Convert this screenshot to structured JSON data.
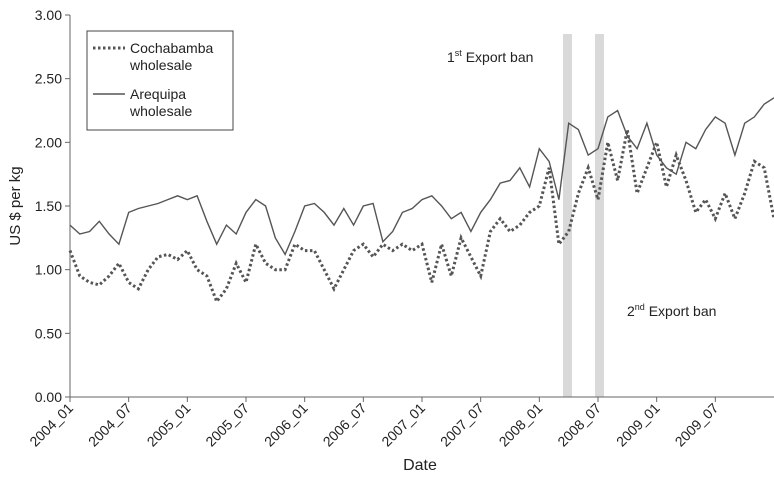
{
  "chart_data": {
    "type": "line",
    "x_label": "Date",
    "y_label": "US $ per kg",
    "categories": [
      "2004_01",
      null,
      null,
      null,
      null,
      null,
      "2004_07",
      null,
      null,
      null,
      null,
      null,
      "2005_01",
      null,
      null,
      null,
      null,
      null,
      "2005_07",
      null,
      null,
      null,
      null,
      null,
      "2006_01",
      null,
      null,
      null,
      null,
      null,
      "2006_07",
      null,
      null,
      null,
      null,
      null,
      "2007_01",
      null,
      null,
      null,
      null,
      null,
      "2007_07",
      null,
      null,
      null,
      null,
      null,
      "2008_01",
      null,
      null,
      null,
      null,
      null,
      "2008_07",
      null,
      null,
      null,
      null,
      null,
      "2009_01",
      null,
      null,
      null,
      null,
      null,
      "2009_07",
      null,
      null,
      null,
      null,
      null,
      null
    ],
    "series": [
      {
        "name": "Cochabamba wholesale",
        "color": "#555555",
        "dash": "dotted",
        "values": [
          1.15,
          0.95,
          0.9,
          0.88,
          0.95,
          1.05,
          0.9,
          0.85,
          1.0,
          1.1,
          1.12,
          1.08,
          1.15,
          1.0,
          0.95,
          0.75,
          0.85,
          1.05,
          0.9,
          1.2,
          1.05,
          1.0,
          1.0,
          1.2,
          1.15,
          1.15,
          1.0,
          0.85,
          1.0,
          1.15,
          1.2,
          1.1,
          1.2,
          1.15,
          1.2,
          1.15,
          1.2,
          0.9,
          1.2,
          0.95,
          1.25,
          1.1,
          0.95,
          1.3,
          1.4,
          1.3,
          1.35,
          1.45,
          1.5,
          1.8,
          1.2,
          1.3,
          1.6,
          1.8,
          1.55,
          2.0,
          1.7,
          2.1,
          1.6,
          1.8,
          2.0,
          1.65,
          1.9,
          1.7,
          1.45,
          1.55,
          1.4,
          1.6,
          1.4,
          1.6,
          1.85,
          1.8,
          1.4
        ]
      },
      {
        "name": "Arequipa wholesale",
        "color": "#555555",
        "dash": "solid",
        "values": [
          1.35,
          1.28,
          1.3,
          1.38,
          1.28,
          1.2,
          1.45,
          1.48,
          1.5,
          1.52,
          1.55,
          1.58,
          1.55,
          1.58,
          1.38,
          1.2,
          1.35,
          1.28,
          1.45,
          1.55,
          1.5,
          1.25,
          1.12,
          1.3,
          1.5,
          1.52,
          1.45,
          1.35,
          1.48,
          1.35,
          1.5,
          1.52,
          1.22,
          1.3,
          1.45,
          1.48,
          1.55,
          1.58,
          1.5,
          1.4,
          1.45,
          1.3,
          1.45,
          1.55,
          1.68,
          1.7,
          1.8,
          1.65,
          1.95,
          1.85,
          1.55,
          2.15,
          2.1,
          1.9,
          1.95,
          2.2,
          2.25,
          2.05,
          1.95,
          2.15,
          1.9,
          1.8,
          1.75,
          2.0,
          1.95,
          2.1,
          2.2,
          2.15,
          1.9,
          2.15,
          2.2,
          2.3,
          2.35
        ]
      }
    ],
    "ylim": [
      0,
      3
    ],
    "yticks": [
      {
        "value": 0,
        "label": "0.00"
      },
      {
        "value": 0.5,
        "label": "0.50"
      },
      {
        "value": 1,
        "label": "1.00"
      },
      {
        "value": 1.5,
        "label": "1.50"
      },
      {
        "value": 2,
        "label": "2.00"
      },
      {
        "value": 2.5,
        "label": "2.50"
      },
      {
        "value": 3,
        "label": "3.00"
      }
    ],
    "annotations": [
      {
        "num": "1",
        "sup": "st",
        "text": " Export ban"
      },
      {
        "num": "2",
        "sup": "nd",
        "text": " Export ban"
      }
    ]
  }
}
